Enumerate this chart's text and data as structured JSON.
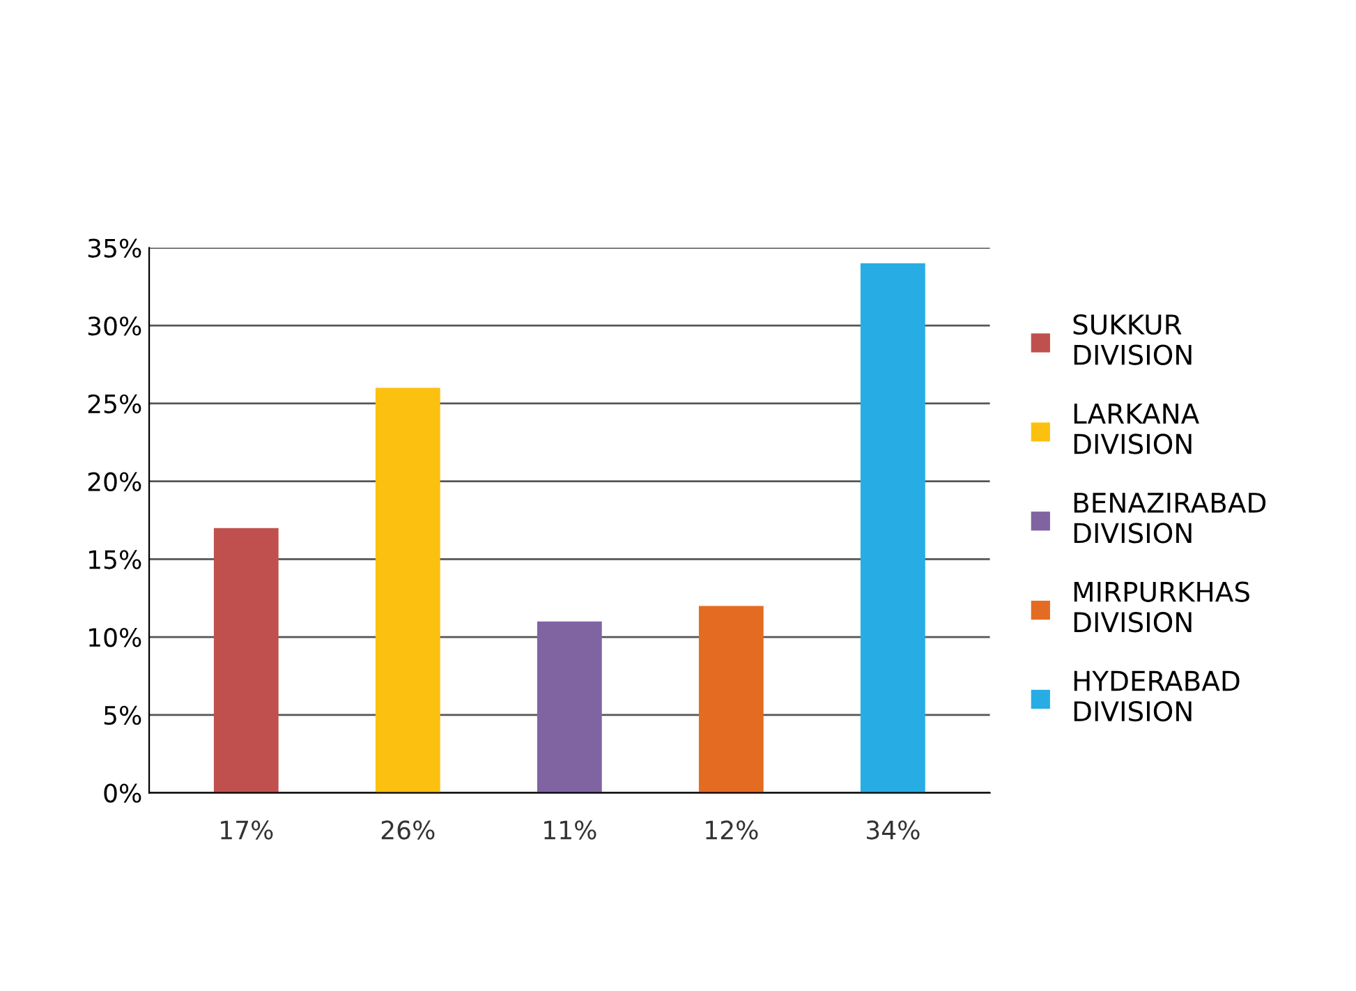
{
  "chart_data": {
    "type": "bar",
    "categories": [
      null,
      null,
      null,
      null,
      null
    ],
    "series": [
      {
        "name": "SUKKUR DIVISION",
        "color": "#c0504d",
        "values": [
          17,
          null,
          null,
          null,
          null
        ],
        "value_labels": [
          "17%",
          null,
          null,
          null,
          null
        ]
      },
      {
        "name": "LARKANA DIVISION",
        "color": "#fcc010",
        "values": [
          null,
          26,
          null,
          null,
          null
        ],
        "value_labels": [
          null,
          "26%",
          null,
          null,
          null
        ]
      },
      {
        "name": "BENAZIRABAD DIVISION",
        "color": "#8064a2",
        "values": [
          null,
          null,
          11,
          null,
          null
        ],
        "value_labels": [
          null,
          null,
          "11%",
          null,
          null
        ]
      },
      {
        "name": "MIRPURKHAS DIVISION",
        "color": "#e46c22",
        "values": [
          null,
          null,
          null,
          12,
          null
        ],
        "value_labels": [
          null,
          null,
          null,
          "12%",
          null
        ]
      },
      {
        "name": "HYDERABAD DIVISION",
        "color": "#27ade4",
        "values": [
          null,
          null,
          null,
          null,
          34
        ],
        "value_labels": [
          null,
          null,
          null,
          null,
          "34%"
        ]
      }
    ],
    "ylim": [
      0,
      35
    ],
    "yticks": [
      {
        "value": 0,
        "label": "0%"
      },
      {
        "value": 5,
        "label": "5%"
      },
      {
        "value": 10,
        "label": "10%"
      },
      {
        "value": 15,
        "label": "15%"
      },
      {
        "value": 20,
        "label": "20%"
      },
      {
        "value": 25,
        "label": "25%"
      },
      {
        "value": 30,
        "label": "30%"
      },
      {
        "value": 35,
        "label": "35%"
      }
    ],
    "grid": "y",
    "legend": "right"
  }
}
